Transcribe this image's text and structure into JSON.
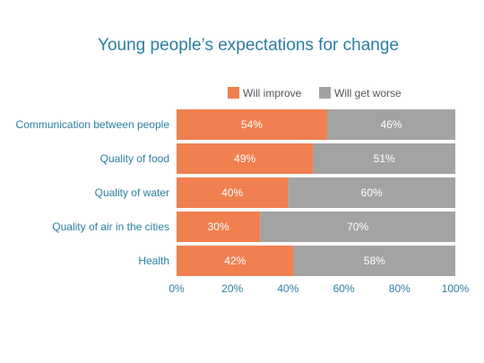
{
  "chart_data": {
    "type": "bar",
    "orientation": "horizontal",
    "stacked": true,
    "title": "Young people’s expectations for change",
    "categories": [
      "Communication between people",
      "Quality of food",
      "Quality of water",
      "Quality of air in the cities",
      "Health"
    ],
    "series": [
      {
        "name": "Will improve",
        "color": "#F08050",
        "values": [
          54,
          49,
          40,
          30,
          42
        ]
      },
      {
        "name": "Will get worse",
        "color": "#A3A3A3",
        "values": [
          46,
          51,
          60,
          70,
          58
        ]
      }
    ],
    "value_suffix": "%",
    "xlim": [
      0,
      100
    ],
    "xticks": [
      0,
      20,
      40,
      60,
      80,
      100
    ],
    "xtick_labels": [
      "0%",
      "20%",
      "40%",
      "60%",
      "80%",
      "100%"
    ],
    "legend_position": "top-right",
    "grid": false,
    "colors": {
      "title": "#2B7FA0",
      "tick_labels": "#2B7FA0",
      "category_labels": "#2B7FA0",
      "bar_labels": "#FFFFFF"
    }
  }
}
